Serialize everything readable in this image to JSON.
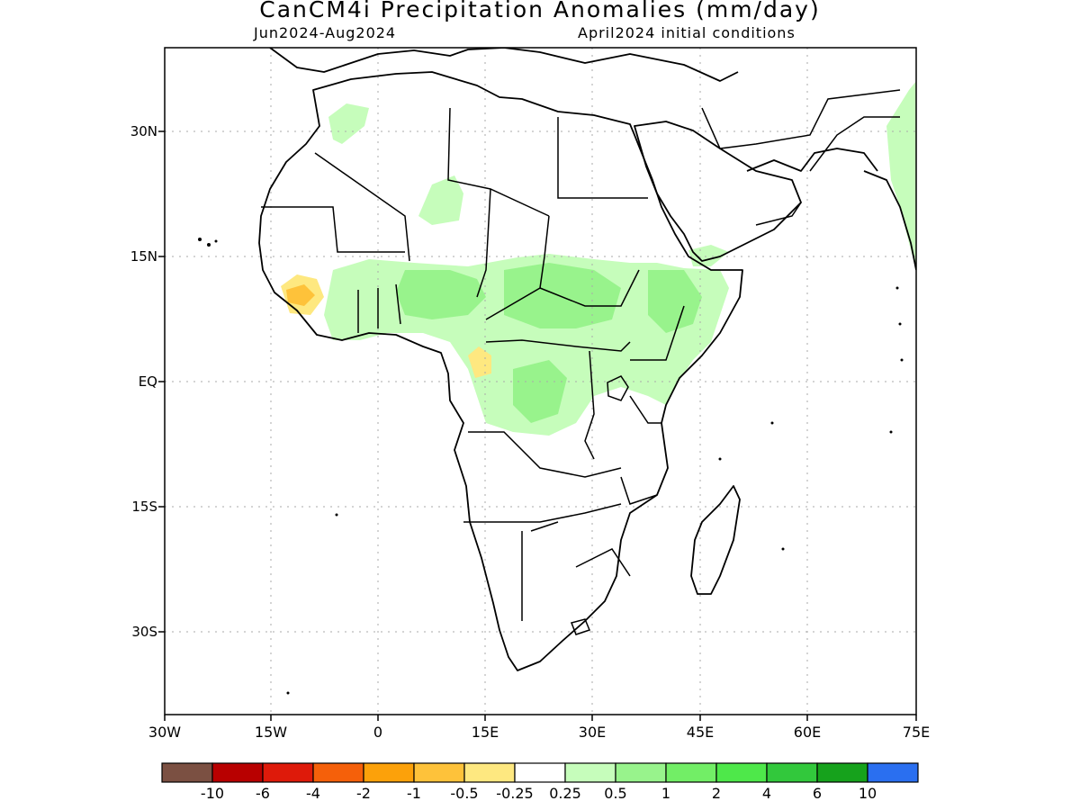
{
  "title": "CanCM4i Precipitation Anomalies (mm/day)",
  "subtitle_left": "Jun2024-Aug2024",
  "subtitle_right": "April2024 initial conditions",
  "map": {
    "lon_range": [
      -30,
      75
    ],
    "lat_range": [
      -40,
      40
    ],
    "lat_ticks": [
      "30N",
      "15N",
      "EQ",
      "15S",
      "30S"
    ],
    "lon_ticks": [
      "30W",
      "15W",
      "0",
      "15E",
      "30E",
      "45E",
      "60E",
      "75E"
    ],
    "grid": "dotted",
    "features": [
      "coastlines",
      "country borders",
      "shaded anomaly regions"
    ]
  },
  "colorbar": {
    "labels": [
      "-10",
      "-6",
      "-4",
      "-2",
      "-1",
      "-0.5",
      "-0.25",
      "0.25",
      "0.5",
      "1",
      "2",
      "4",
      "6",
      "10"
    ],
    "colors": [
      "#7b5042",
      "#b80000",
      "#de1a0a",
      "#f5600a",
      "#fca10a",
      "#fec23a",
      "#fee880",
      "#ffffff",
      "#c6fdbb",
      "#98f38c",
      "#72ee66",
      "#4ee84a",
      "#32c83c",
      "#16a21c",
      "#2a6ff0"
    ]
  },
  "anomaly_colors": {
    "dry_light": "#fee880",
    "dry_mid": "#fec23a",
    "wet_light": "#c6fdbb",
    "wet_mid": "#98f38c",
    "wet_strong": "#72ee66"
  }
}
